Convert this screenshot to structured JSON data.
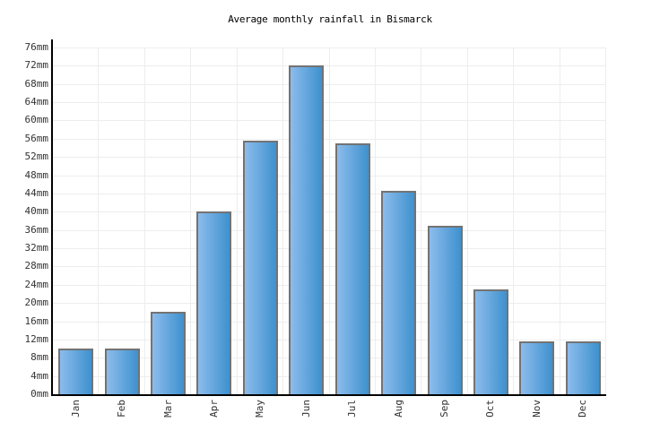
{
  "chart_data": {
    "type": "bar",
    "title": "Average monthly rainfall in Bismarck",
    "categories": [
      "Jan",
      "Feb",
      "Mar",
      "Apr",
      "May",
      "Jun",
      "Jul",
      "Aug",
      "Sep",
      "Oct",
      "Nov",
      "Dec"
    ],
    "values": [
      10,
      10,
      18,
      40,
      55.5,
      72,
      55,
      44.5,
      37,
      23,
      11.5,
      11.5
    ],
    "unit": "mm",
    "xlabel": "",
    "ylabel": "",
    "ylim": [
      0,
      76
    ],
    "ytick_step": 4,
    "ytick_suffix": "mm",
    "grid": true,
    "legend_position": "none",
    "colors": {
      "bar_gradient_left": "#8cbcec",
      "bar_gradient_right": "#3e91ce",
      "bar_border": "#737373",
      "gridline": "#ededed",
      "axis": "#000000",
      "tick_text": "#333333",
      "title_text": "#000000",
      "background": "#ffffff"
    }
  }
}
